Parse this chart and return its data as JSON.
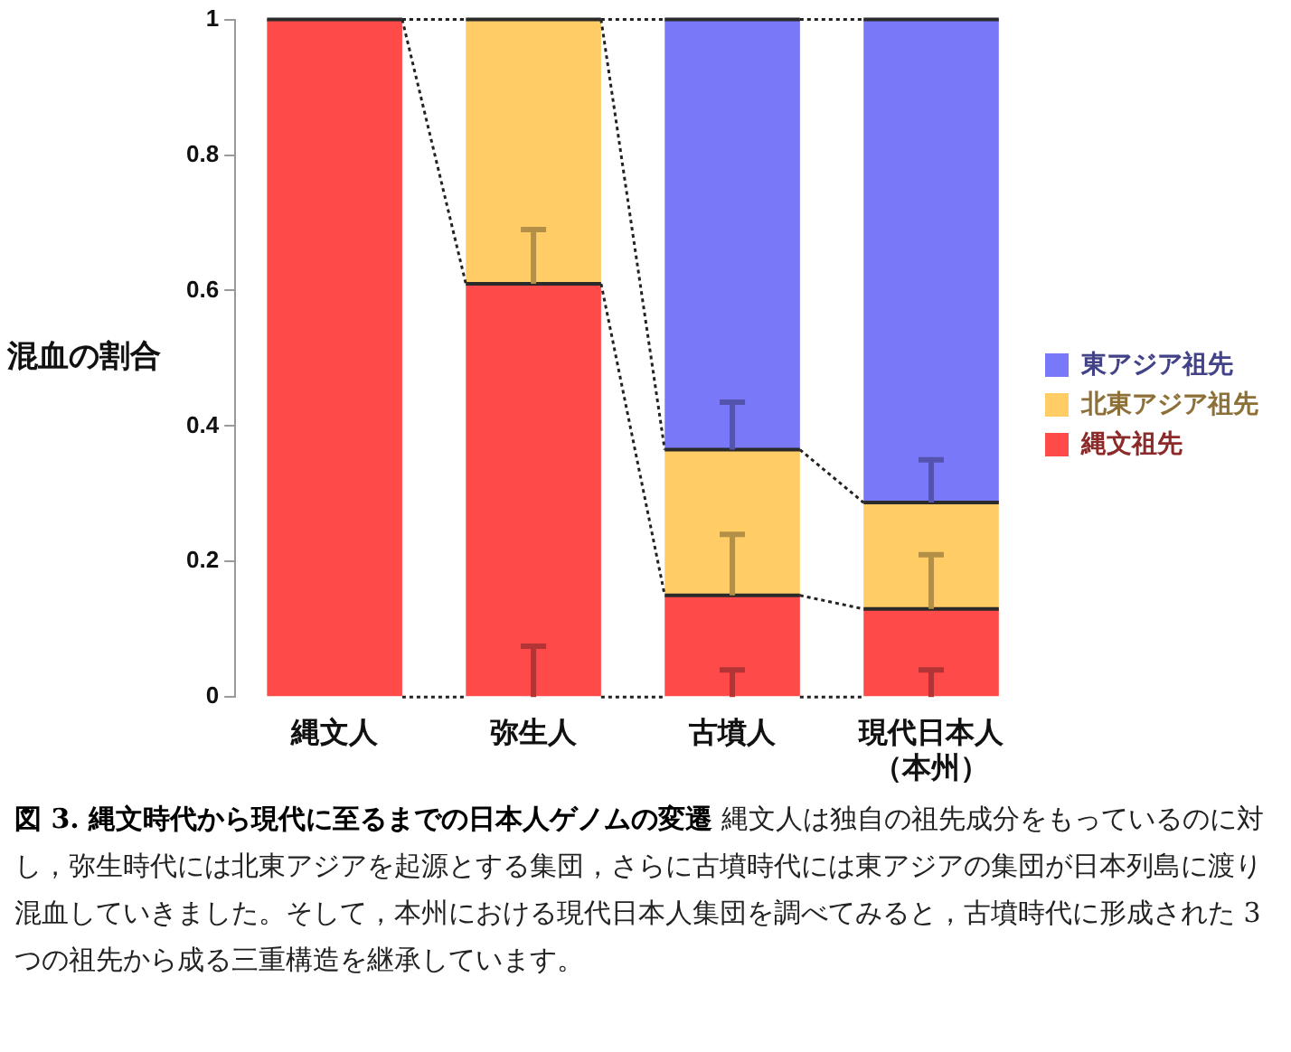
{
  "chart_data": {
    "type": "bar",
    "stacked": true,
    "ylabel": "混血の割合",
    "categories": [
      "縄文人",
      "弥生人",
      "古墳人",
      "現代日本人（本州）"
    ],
    "series": [
      {
        "name": "縄文祖先",
        "color": "#ff4a4a",
        "values": [
          1,
          0.61,
          0.15,
          0.13
        ],
        "errors": [
          null,
          [
            0,
            0.075
          ],
          [
            0,
            0.04
          ],
          [
            0,
            0.04
          ]
        ]
      },
      {
        "name": "北東アジア祖先",
        "color": "#ffcc66",
        "values": [
          0,
          0.39,
          0.215,
          0.157
        ],
        "errors": [
          null,
          [
            0.61,
            0.69
          ],
          [
            0.15,
            0.24
          ],
          [
            0.13,
            0.21
          ]
        ]
      },
      {
        "name": "東アジア祖先",
        "color": "#7878f8",
        "values": [
          0,
          0,
          0.635,
          0.713
        ],
        "errors": [
          null,
          null,
          [
            0.365,
            0.435
          ],
          [
            0.287,
            0.35
          ]
        ]
      }
    ],
    "ylim": [
      0,
      1
    ],
    "yticks": [
      0,
      0.2,
      0.4,
      0.6,
      0.8,
      1
    ],
    "grid": false,
    "legend": "right",
    "annotations": [
      "図 3. 縄文時代から現代に至るまでの日本人ゲノムの変遷",
      "縄文人は独自の祖先成分をもっているのに対し，弥生時代には北東アジアを起源とする集団，さらに古墳時代には東アジアの集団が日本列島に渡り混血していきました。そして，本州における現代日本人集団を調べてみると，古墳時代に形成された 3 つの祖先から成る三重構造を継承しています。"
    ]
  }
}
